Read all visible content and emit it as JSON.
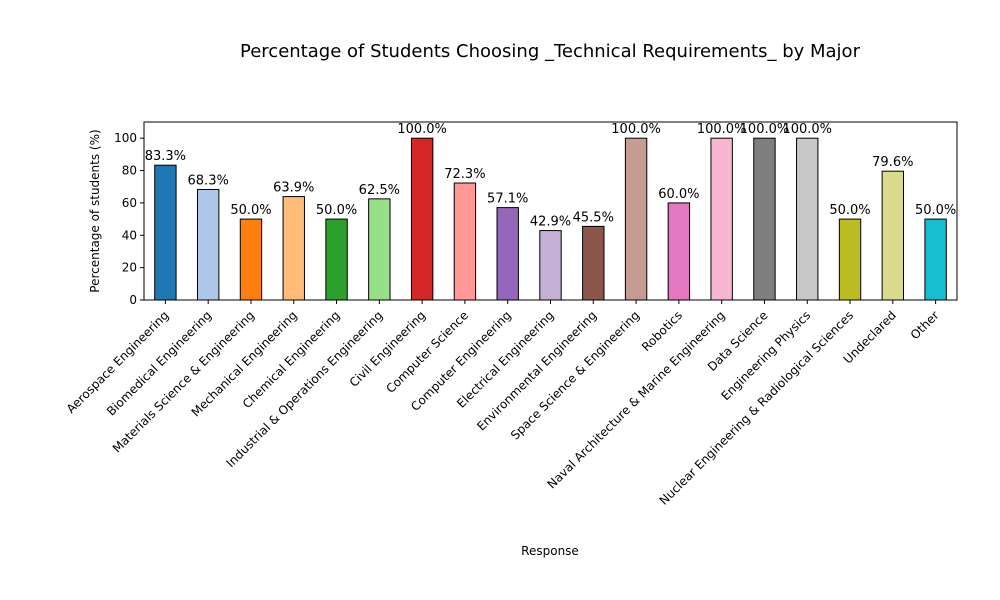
{
  "chart_data": {
    "type": "bar",
    "title": "Percentage of Students Choosing _Technical Requirements_ by Major",
    "xlabel": "Response",
    "ylabel": "Percentage of students (%)",
    "ylim": [
      0,
      110
    ],
    "yticks": [
      "0",
      "20",
      "40",
      "60",
      "80",
      "100"
    ],
    "grid": false,
    "categories": [
      "Aerospace Engineering",
      "Biomedical Engineering",
      "Materials Science & Engineering",
      "Mechanical Engineering",
      "Chemical Engineering",
      "Industrial & Operations Engineering",
      "Civil Engineering",
      "Computer Science",
      "Computer Engineering",
      "Electrical Engineering",
      "Environmental Engineering",
      "Space Science & Engineering",
      "Robotics",
      "Naval Architecture & Marine Engineering",
      "Data Science",
      "Engineering Physics",
      "Nuclear Engineering & Radiological Sciences",
      "Undeclared",
      "Other"
    ],
    "values": [
      83.3,
      68.3,
      50.0,
      63.9,
      50.0,
      62.5,
      100.0,
      72.3,
      57.1,
      42.9,
      45.5,
      100.0,
      60.0,
      100.0,
      100.0,
      100.0,
      50.0,
      79.6,
      50.0
    ],
    "data_labels": [
      "83.3%",
      "68.3%",
      "50.0%",
      "63.9%",
      "50.0%",
      "62.5%",
      "100.0%",
      "72.3%",
      "57.1%",
      "42.9%",
      "45.5%",
      "100.0%",
      "60.0%",
      "100.0%",
      "100.0%",
      "100.0%",
      "50.0%",
      "79.6%",
      "50.0%"
    ],
    "colors": [
      "#1f77b4",
      "#aec7e8",
      "#ff7f0e",
      "#ffbb78",
      "#2ca02c",
      "#98df8a",
      "#d62728",
      "#ff9896",
      "#9467bd",
      "#c5b0d5",
      "#8c564b",
      "#c49c94",
      "#e377c2",
      "#f7b6d2",
      "#7f7f7f",
      "#c7c7c7",
      "#bcbd22",
      "#dbdb8d",
      "#17becf"
    ]
  }
}
